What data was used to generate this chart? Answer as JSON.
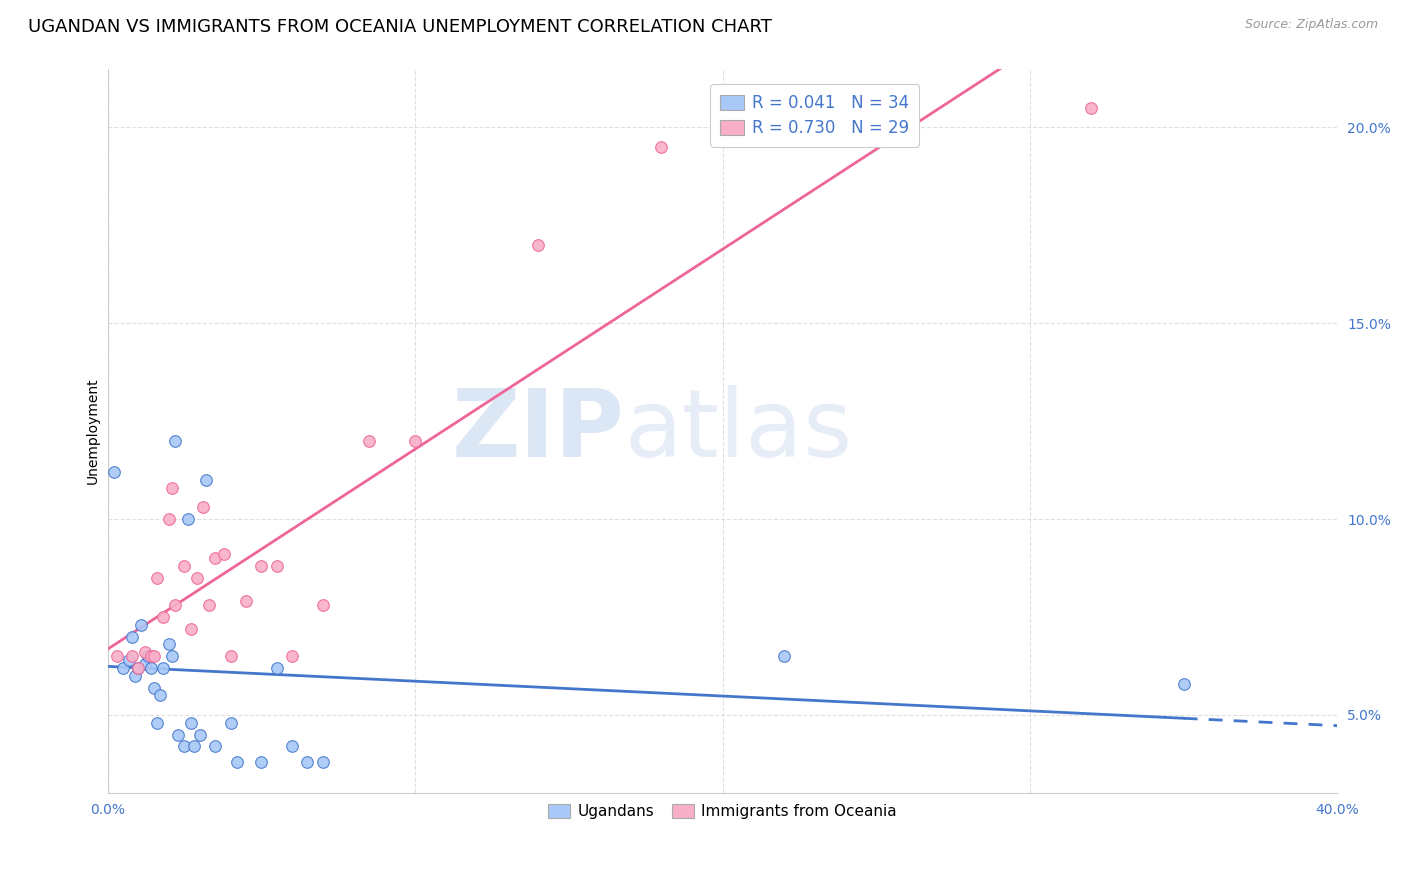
{
  "title": "UGANDAN VS IMMIGRANTS FROM OCEANIA UNEMPLOYMENT CORRELATION CHART",
  "source": "Source: ZipAtlas.com",
  "ylabel": "Unemployment",
  "watermark_zip": "ZIP",
  "watermark_atlas": "atlas",
  "legend_r1": "R = 0.041",
  "legend_n1": "N = 34",
  "legend_r2": "R = 0.730",
  "legend_n2": "N = 29",
  "color_blue": "#A8C8F8",
  "color_pink": "#F8B0C8",
  "line_blue": "#4477CC",
  "line_pink": "#EE6699",
  "ugandan_x": [
    0.2,
    0.5,
    0.7,
    0.8,
    0.9,
    1.0,
    1.1,
    1.2,
    1.3,
    1.4,
    1.5,
    1.6,
    1.7,
    1.8,
    2.0,
    2.1,
    2.2,
    2.3,
    2.5,
    2.6,
    2.7,
    2.8,
    3.0,
    3.2,
    3.5,
    4.0,
    4.2,
    5.0,
    5.5,
    6.0,
    6.5,
    7.0,
    22.0,
    35.0
  ],
  "ugandan_y": [
    11.2,
    6.2,
    6.4,
    7.0,
    6.0,
    6.2,
    7.3,
    6.3,
    6.5,
    6.2,
    5.7,
    4.8,
    5.5,
    6.2,
    6.8,
    6.5,
    12.0,
    4.5,
    4.2,
    10.0,
    4.8,
    4.2,
    4.5,
    11.0,
    4.2,
    4.8,
    3.8,
    3.8,
    6.2,
    4.2,
    3.8,
    3.8,
    6.5,
    5.8
  ],
  "oceania_x": [
    0.3,
    0.8,
    1.0,
    1.2,
    1.4,
    1.5,
    1.6,
    1.8,
    2.0,
    2.1,
    2.2,
    2.5,
    2.7,
    2.9,
    3.1,
    3.3,
    3.5,
    3.8,
    4.0,
    4.5,
    5.0,
    5.5,
    6.0,
    7.0,
    8.5,
    10.0,
    14.0,
    18.0,
    32.0
  ],
  "oceania_y": [
    6.5,
    6.5,
    6.2,
    6.6,
    6.5,
    6.5,
    8.5,
    7.5,
    10.0,
    10.8,
    7.8,
    8.8,
    7.2,
    8.5,
    10.3,
    7.8,
    9.0,
    9.1,
    6.5,
    7.9,
    8.8,
    8.8,
    6.5,
    7.8,
    12.0,
    12.0,
    17.0,
    19.5,
    20.5
  ],
  "xlim": [
    0.0,
    40.0
  ],
  "ylim": [
    3.0,
    21.5
  ],
  "yticks": [
    5.0,
    10.0,
    15.0,
    20.0
  ],
  "ytick_labels": [
    "5.0%",
    "10.0%",
    "15.0%",
    "20.0%"
  ],
  "xtick_show": [
    0.0,
    40.0
  ],
  "xtick_minor": [
    10.0,
    20.0,
    30.0
  ],
  "grid_color": "#DDDDDD",
  "bg_color": "#FFFFFF",
  "title_fontsize": 13,
  "axis_label_fontsize": 10,
  "tick_fontsize": 10,
  "marker_size": 70
}
